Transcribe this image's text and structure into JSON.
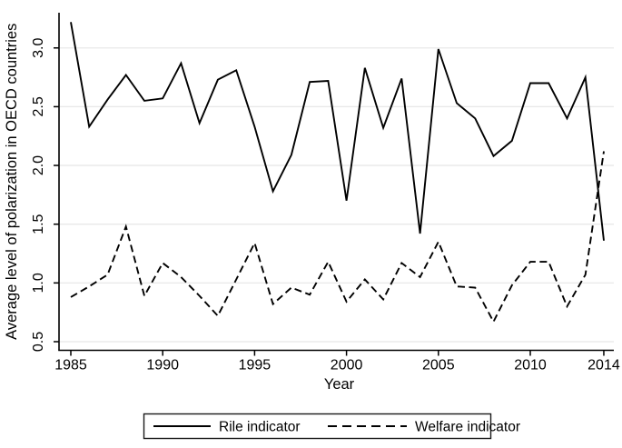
{
  "chart_data": {
    "type": "line",
    "title": "",
    "xlabel": "Year",
    "ylabel": "Average level of polarization in OECD countries",
    "x": [
      1985,
      1986,
      1987,
      1988,
      1989,
      1990,
      1991,
      1992,
      1993,
      1994,
      1995,
      1996,
      1997,
      1998,
      1999,
      2000,
      2001,
      2002,
      2003,
      2004,
      2005,
      2006,
      2007,
      2008,
      2009,
      2010,
      2011,
      2012,
      2013,
      2014
    ],
    "series": [
      {
        "name": "Rile indicator",
        "line_style": "solid",
        "values": [
          3.22,
          2.33,
          2.56,
          2.77,
          2.55,
          2.57,
          2.87,
          2.36,
          2.73,
          2.81,
          2.33,
          1.78,
          2.09,
          2.71,
          2.72,
          1.7,
          2.83,
          2.32,
          2.74,
          1.42,
          2.99,
          2.53,
          2.4,
          2.08,
          2.21,
          2.7,
          2.7,
          2.4,
          2.75,
          1.36
        ]
      },
      {
        "name": "Welfare indicator",
        "line_style": "dashed",
        "values": [
          0.88,
          0.97,
          1.07,
          1.48,
          0.89,
          1.17,
          1.05,
          0.89,
          0.72,
          1.03,
          1.34,
          0.82,
          0.96,
          0.9,
          1.18,
          0.84,
          1.03,
          0.86,
          1.17,
          1.05,
          1.35,
          0.97,
          0.96,
          0.67,
          0.98,
          1.18,
          1.18,
          0.8,
          1.07,
          2.12
        ]
      }
    ],
    "xticks": [
      "1985",
      "1990",
      "1995",
      "2000",
      "2005",
      "2010",
      "2014"
    ],
    "xtick_years": [
      1985,
      1990,
      1995,
      2000,
      2005,
      2010,
      2014
    ],
    "yticks": [
      "0.5",
      "1.0",
      "1.5",
      "2.0",
      "2.5",
      "3.0"
    ],
    "ytick_values": [
      0.5,
      1.0,
      1.5,
      2.0,
      2.5,
      3.0
    ],
    "ylim": [
      0.4,
      3.3
    ],
    "xlim": [
      1984.6,
      2014.6
    ],
    "grid": "horizontal",
    "legend_position": "bottom-center",
    "colors": {
      "line": "#000000",
      "grid": "#e8e8e8",
      "background": "#ffffff",
      "legend_border": "#1a1a1a"
    }
  }
}
